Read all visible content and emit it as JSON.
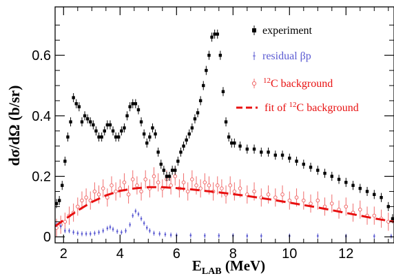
{
  "chart_data": {
    "type": "scatter",
    "title": "",
    "xlabel": {
      "main": "E",
      "sub": "LAB",
      "unit": " (MeV)"
    },
    "ylabel": "dσ/dΩ (b/sr)",
    "xlim": [
      1.7,
      13.7
    ],
    "ylim": [
      -0.02,
      0.76
    ],
    "xticks": [
      2,
      4,
      6,
      8,
      10,
      12
    ],
    "yticks": [
      0,
      0.2,
      0.4,
      0.6
    ],
    "xtick_labels": [
      "2",
      "4",
      "6",
      "8",
      "10",
      "12"
    ],
    "ytick_labels": [
      "0",
      "0.2",
      "0.4",
      "0.6"
    ],
    "grid": false,
    "legend_position": "top-right",
    "colors": {
      "experiment": "#000000",
      "residual": "#5a5ad2",
      "background": "#f06a6a",
      "fit": "#e81010"
    },
    "series": [
      {
        "key": "experiment",
        "name": "experiment",
        "style": "square-markers-with-errorbars",
        "x": [
          1.75,
          1.85,
          1.95,
          2.05,
          2.15,
          2.25,
          2.35,
          2.45,
          2.55,
          2.65,
          2.75,
          2.85,
          2.95,
          3.05,
          3.15,
          3.25,
          3.35,
          3.45,
          3.55,
          3.65,
          3.75,
          3.85,
          3.95,
          4.05,
          4.15,
          4.25,
          4.35,
          4.45,
          4.55,
          4.65,
          4.75,
          4.85,
          4.95,
          5.05,
          5.15,
          5.25,
          5.35,
          5.45,
          5.55,
          5.65,
          5.75,
          5.85,
          5.95,
          6.05,
          6.15,
          6.25,
          6.35,
          6.45,
          6.55,
          6.65,
          6.75,
          6.85,
          6.95,
          7.05,
          7.15,
          7.25,
          7.35,
          7.45,
          7.55,
          7.65,
          7.75,
          7.85,
          7.95,
          8.05,
          8.25,
          8.5,
          8.75,
          9.0,
          9.25,
          9.5,
          9.75,
          10.0,
          10.25,
          10.5,
          10.75,
          11.0,
          11.25,
          11.5,
          11.75,
          12.0,
          12.25,
          12.5,
          12.75,
          13.0,
          13.25,
          13.5,
          13.65
        ],
        "y": [
          0.11,
          0.12,
          0.17,
          0.25,
          0.33,
          0.38,
          0.46,
          0.44,
          0.43,
          0.38,
          0.4,
          0.39,
          0.38,
          0.37,
          0.35,
          0.33,
          0.33,
          0.35,
          0.37,
          0.37,
          0.35,
          0.33,
          0.33,
          0.35,
          0.36,
          0.4,
          0.43,
          0.44,
          0.44,
          0.42,
          0.38,
          0.34,
          0.31,
          0.33,
          0.36,
          0.34,
          0.28,
          0.24,
          0.22,
          0.2,
          0.2,
          0.22,
          0.22,
          0.25,
          0.28,
          0.3,
          0.32,
          0.34,
          0.36,
          0.39,
          0.41,
          0.45,
          0.5,
          0.55,
          0.6,
          0.66,
          0.67,
          0.67,
          0.6,
          0.48,
          0.38,
          0.33,
          0.31,
          0.31,
          0.3,
          0.29,
          0.29,
          0.28,
          0.28,
          0.27,
          0.27,
          0.26,
          0.25,
          0.24,
          0.23,
          0.22,
          0.21,
          0.2,
          0.19,
          0.18,
          0.17,
          0.16,
          0.15,
          0.14,
          0.13,
          0.1,
          0.06
        ],
        "err": 0.015
      },
      {
        "key": "residual",
        "name": "residual βp",
        "style": "small-markers-with-errorbars",
        "x": [
          1.75,
          1.9,
          2.05,
          2.2,
          2.35,
          2.5,
          2.65,
          2.8,
          2.95,
          3.1,
          3.25,
          3.4,
          3.55,
          3.65,
          3.75,
          3.9,
          4.05,
          4.2,
          4.35,
          4.45,
          4.55,
          4.65,
          4.75,
          4.85,
          4.95,
          5.05,
          5.2,
          5.4,
          5.6,
          5.8,
          6.0,
          6.5,
          7.0,
          7.5,
          8.0,
          8.5,
          9.0,
          10.0,
          11.0,
          12.0,
          13.0,
          13.6
        ],
        "y": [
          0.04,
          0.035,
          0.02,
          0.02,
          0.015,
          0.012,
          0.01,
          0.01,
          0.01,
          0.012,
          0.015,
          0.02,
          0.028,
          0.032,
          0.025,
          0.018,
          0.015,
          0.02,
          0.04,
          0.07,
          0.085,
          0.075,
          0.06,
          0.045,
          0.03,
          0.02,
          0.012,
          0.01,
          0.008,
          0.006,
          0.005,
          0.005,
          0.004,
          0.004,
          0.004,
          0.003,
          0.003,
          0.003,
          0.003,
          0.002,
          0.002,
          0.002
        ],
        "err": 0.008
      },
      {
        "key": "background",
        "name": "¹²C background",
        "style": "open-circles-with-errorbars",
        "x": [
          1.75,
          1.9,
          2.05,
          2.2,
          2.35,
          2.5,
          2.65,
          2.8,
          2.95,
          3.1,
          3.25,
          3.4,
          3.55,
          3.7,
          3.85,
          4.0,
          4.15,
          4.3,
          4.45,
          4.6,
          4.75,
          4.9,
          5.05,
          5.2,
          5.35,
          5.5,
          5.65,
          5.8,
          5.95,
          6.1,
          6.25,
          6.4,
          6.55,
          6.7,
          6.85,
          7.0,
          7.15,
          7.3,
          7.45,
          7.6,
          7.75,
          7.9,
          8.05,
          8.25,
          8.5,
          8.75,
          9.0,
          9.25,
          9.5,
          9.75,
          10.0,
          10.25,
          10.5,
          10.75,
          11.0,
          11.25,
          11.5,
          11.75,
          12.0,
          12.25,
          12.5,
          12.75,
          13.0,
          13.25,
          13.5
        ],
        "y": [
          0.03,
          0.04,
          0.05,
          0.07,
          0.08,
          0.1,
          0.12,
          0.13,
          0.12,
          0.15,
          0.14,
          0.16,
          0.13,
          0.17,
          0.15,
          0.16,
          0.18,
          0.14,
          0.19,
          0.17,
          0.15,
          0.19,
          0.16,
          0.2,
          0.18,
          0.16,
          0.19,
          0.17,
          0.2,
          0.16,
          0.18,
          0.15,
          0.19,
          0.17,
          0.16,
          0.18,
          0.17,
          0.15,
          0.17,
          0.16,
          0.14,
          0.17,
          0.15,
          0.16,
          0.14,
          0.15,
          0.13,
          0.14,
          0.13,
          0.14,
          0.12,
          0.13,
          0.12,
          0.11,
          0.12,
          0.1,
          0.11,
          0.09,
          0.1,
          0.08,
          0.09,
          0.07,
          0.07,
          0.06,
          0.05
        ],
        "err": 0.03
      },
      {
        "key": "fit",
        "name": "fit of ¹²C background",
        "style": "dashed-line",
        "x": [
          1.7,
          2.0,
          2.5,
          3.0,
          3.5,
          4.0,
          4.5,
          5.0,
          5.5,
          6.0,
          6.5,
          7.0,
          7.5,
          8.0,
          8.5,
          9.0,
          9.5,
          10.0,
          10.5,
          11.0,
          11.5,
          12.0,
          12.5,
          13.0,
          13.5,
          13.7
        ],
        "y": [
          0.035,
          0.055,
          0.087,
          0.115,
          0.137,
          0.152,
          0.16,
          0.164,
          0.164,
          0.161,
          0.157,
          0.152,
          0.147,
          0.141,
          0.135,
          0.128,
          0.121,
          0.113,
          0.105,
          0.097,
          0.088,
          0.079,
          0.07,
          0.061,
          0.053,
          0.05
        ]
      }
    ],
    "legend": [
      {
        "key": "experiment",
        "label": "experiment",
        "color": "#000000"
      },
      {
        "key": "residual",
        "label": "residual βp",
        "color": "#5a5ad2"
      },
      {
        "key": "background",
        "label_sup": "12",
        "label": "C background",
        "color": "#e81010"
      },
      {
        "key": "fit",
        "label_prefix": "fit of ",
        "label_sup": "12",
        "label": "C background",
        "color": "#e81010"
      }
    ]
  }
}
